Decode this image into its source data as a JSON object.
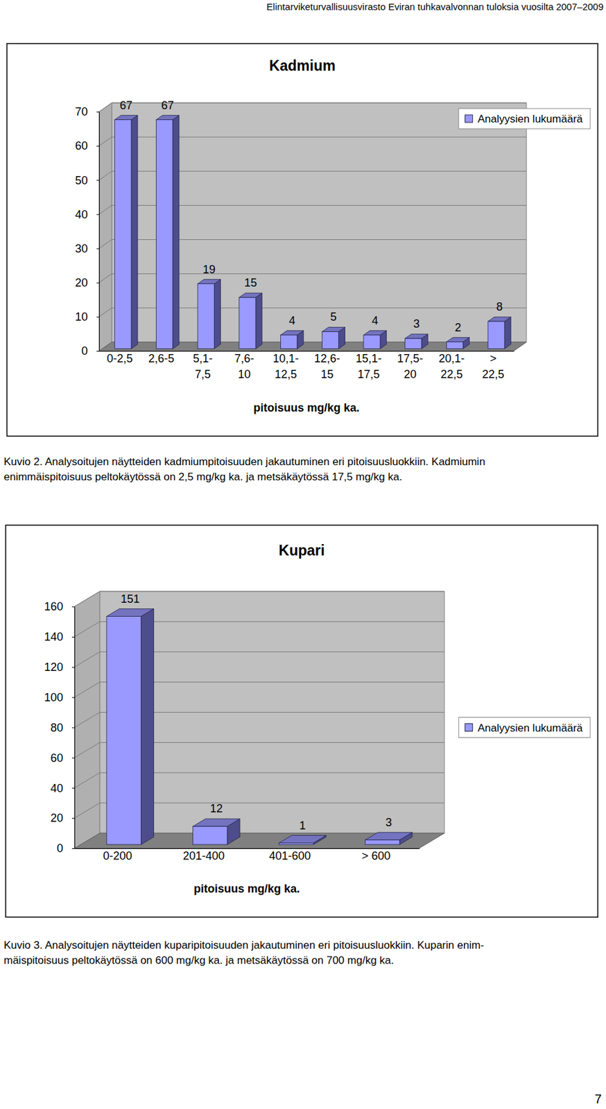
{
  "page": {
    "header": "Elintarviketurvallisuusvirasto Eviran tuhkavalvonnan tuloksia vuosilta 2007–2009",
    "captions": [
      [
        "Kuvio 2. Analysoitujen näytteiden kadmiumpitoisuuden jakautuminen eri pitoisuusluokkiin. Kadmiumin",
        "enimmäispitoisuus peltokäytössä on 2,5 mg/kg ka. ja metsäkäytössä 17,5 mg/kg ka."
      ],
      [
        "Kuvio 3. Analysoitujen näytteiden kuparipitoisuuden jakautuminen eri pitoisuusluokkiin. Kuparin enim-",
        "mäispitoisuus peltokäytössä on 600 mg/kg ka. ja metsäkäytössä on 700 mg/kg ka."
      ]
    ],
    "page_number": 7
  },
  "chart_data": [
    {
      "type": "bar",
      "title": "Kadmium",
      "categories": [
        "0-2,5",
        "2,6-5",
        "5,1-\n7,5",
        "7,6-\n10",
        "10,1-\n12,5",
        "12,6-\n15",
        "15,1-\n17,5",
        "17,5-\n20",
        "20,1-\n22,5",
        ">\n22,5"
      ],
      "series": [
        {
          "name": "Analyysien lukumäärä",
          "color": "#9999ff",
          "values": [
            67,
            67,
            19,
            15,
            4,
            5,
            4,
            3,
            2,
            8
          ]
        }
      ],
      "xlabel": "pitoisuus mg/kg ka.",
      "ylim": [
        0,
        70
      ],
      "yticks": [
        0,
        10,
        20,
        30,
        40,
        50,
        60,
        70
      ],
      "grid": true,
      "legend": "upper right",
      "data_labels": true
    },
    {
      "type": "bar",
      "title": "Kupari",
      "categories": [
        "0-200",
        "201-400",
        "401-600",
        "> 600"
      ],
      "series": [
        {
          "name": "Analyysien lukumäärä",
          "color": "#9999ff",
          "values": [
            151,
            12,
            1,
            3
          ]
        }
      ],
      "xlabel": "pitoisuus mg/kg ka.",
      "ylim": [
        0,
        160
      ],
      "yticks": [
        0,
        20,
        40,
        60,
        80,
        100,
        120,
        140,
        160
      ],
      "grid": true,
      "legend": "right",
      "data_labels": true
    }
  ]
}
